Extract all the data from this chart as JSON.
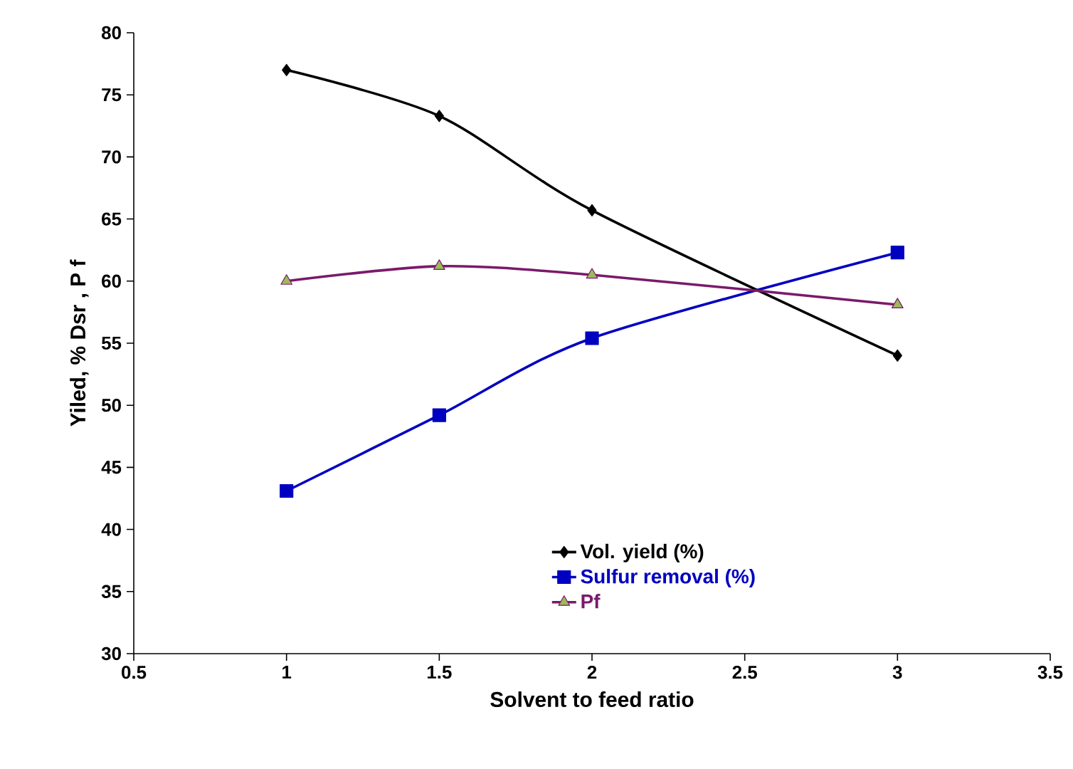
{
  "chart_data": {
    "type": "line",
    "xlabel": "Solvent to feed ratio",
    "ylabel": "Yiled, %      Dsr      , P f",
    "x": [
      1,
      1.5,
      2,
      3
    ],
    "series": [
      {
        "name": "Vol. yield (%)",
        "color": "#000000",
        "marker": "diamond",
        "values": [
          77,
          73.3,
          65.7,
          54
        ]
      },
      {
        "name": "Sulfur removal (%)",
        "color": "#0000c0",
        "marker": "square",
        "values": [
          43.1,
          49.2,
          55.4,
          62.3
        ]
      },
      {
        "name": "Pf",
        "color": "#7a1a6a",
        "marker": "triangle",
        "values": [
          60,
          61.2,
          60.5,
          58.1
        ]
      }
    ],
    "xlim": [
      0.5,
      3.5
    ],
    "xticks": [
      0.5,
      1,
      1.5,
      2,
      2.5,
      3,
      3.5
    ],
    "ylim": [
      30,
      80
    ],
    "yticks": [
      30,
      35,
      40,
      45,
      50,
      55,
      60,
      65,
      70,
      75,
      80
    ],
    "grid": false,
    "legend": "bottom right",
    "line_style": "solid"
  }
}
